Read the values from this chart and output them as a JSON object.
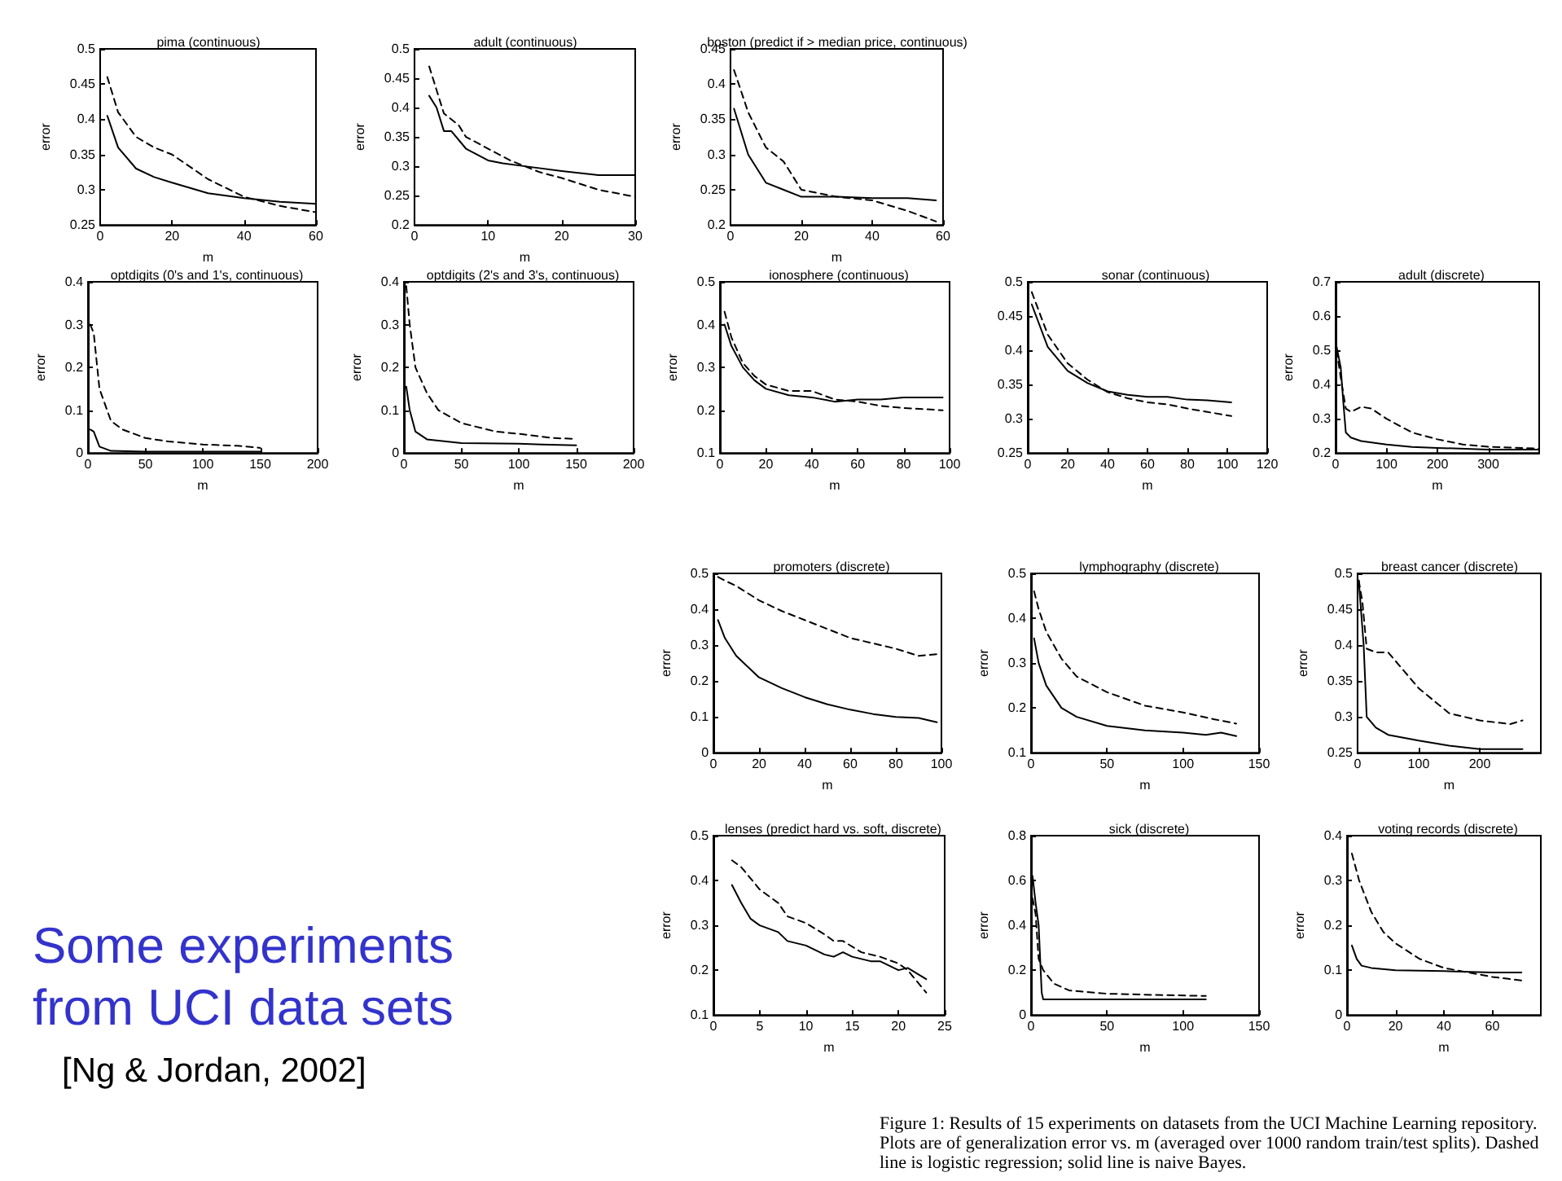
{
  "chart_data": [
    {
      "type": "line",
      "title": "pima (continuous)",
      "xlabel": "m",
      "ylabel": "error",
      "xlim": [
        0,
        60
      ],
      "ylim": [
        0.25,
        0.5
      ],
      "xticks": [
        0,
        20,
        40,
        60
      ],
      "yticks": [
        0.25,
        0.3,
        0.35,
        0.4,
        0.45,
        0.5
      ],
      "series": [
        {
          "color": "#000000",
          "line_style": "solid",
          "x": [
            2,
            5,
            10,
            15,
            20,
            30,
            40,
            50,
            60
          ],
          "values": [
            0.405,
            0.36,
            0.33,
            0.318,
            0.31,
            0.295,
            0.288,
            0.283,
            0.28
          ]
        },
        {
          "color": "#000000",
          "line_style": "dashed",
          "x": [
            2,
            5,
            10,
            15,
            20,
            30,
            40,
            50,
            60
          ],
          "values": [
            0.46,
            0.41,
            0.375,
            0.36,
            0.35,
            0.315,
            0.29,
            0.277,
            0.268
          ]
        }
      ]
    },
    {
      "type": "line",
      "title": "adult (continuous)",
      "xlabel": "m",
      "ylabel": "error",
      "xlim": [
        0,
        30
      ],
      "ylim": [
        0.2,
        0.5
      ],
      "xticks": [
        0,
        10,
        20,
        30
      ],
      "yticks": [
        0.2,
        0.25,
        0.3,
        0.35,
        0.4,
        0.45,
        0.5
      ],
      "series": [
        {
          "color": "#000000",
          "line_style": "solid",
          "x": [
            2,
            3,
            4,
            5,
            7,
            10,
            12,
            15,
            20,
            25,
            30
          ],
          "values": [
            0.42,
            0.4,
            0.36,
            0.36,
            0.33,
            0.31,
            0.305,
            0.3,
            0.292,
            0.285,
            0.285
          ]
        },
        {
          "color": "#000000",
          "line_style": "dashed",
          "x": [
            2,
            3,
            4,
            6,
            7,
            10,
            13,
            17,
            20,
            25,
            30
          ],
          "values": [
            0.47,
            0.43,
            0.39,
            0.37,
            0.35,
            0.33,
            0.31,
            0.29,
            0.28,
            0.26,
            0.248
          ]
        }
      ]
    },
    {
      "type": "line",
      "title": "boston (predict if > median price, continuous)",
      "xlabel": "m",
      "ylabel": "error",
      "xlim": [
        0,
        60
      ],
      "ylim": [
        0.2,
        0.45
      ],
      "xticks": [
        0,
        20,
        40,
        60
      ],
      "yticks": [
        0.2,
        0.25,
        0.3,
        0.35,
        0.4,
        0.45
      ],
      "series": [
        {
          "color": "#000000",
          "line_style": "solid",
          "x": [
            1,
            5,
            10,
            15,
            20,
            30,
            40,
            50,
            58
          ],
          "values": [
            0.365,
            0.3,
            0.26,
            0.25,
            0.24,
            0.24,
            0.238,
            0.238,
            0.235
          ]
        },
        {
          "color": "#000000",
          "line_style": "dashed",
          "x": [
            1,
            5,
            10,
            15,
            20,
            30,
            40,
            50,
            58
          ],
          "values": [
            0.42,
            0.36,
            0.31,
            0.29,
            0.25,
            0.24,
            0.235,
            0.22,
            0.205
          ]
        }
      ]
    },
    {
      "type": "line",
      "title": "optdigits (0's and 1's, continuous)",
      "xlabel": "m",
      "ylabel": "error",
      "xlim": [
        0,
        200
      ],
      "ylim": [
        0,
        0.4
      ],
      "xticks": [
        0,
        50,
        100,
        150,
        200
      ],
      "yticks": [
        0,
        0.1,
        0.2,
        0.3,
        0.4
      ],
      "series": [
        {
          "color": "#000000",
          "line_style": "solid",
          "x": [
            2,
            5,
            10,
            20,
            50,
            100,
            150
          ],
          "values": [
            0.055,
            0.05,
            0.015,
            0.005,
            0.003,
            0.003,
            0.003
          ]
        },
        {
          "color": "#000000",
          "line_style": "dashed",
          "x": [
            2,
            5,
            10,
            20,
            30,
            50,
            70,
            100,
            130,
            150
          ],
          "values": [
            0.3,
            0.28,
            0.15,
            0.075,
            0.055,
            0.035,
            0.027,
            0.02,
            0.017,
            0.012
          ]
        }
      ]
    },
    {
      "type": "line",
      "title": "optdigits (2's and 3's, continuous)",
      "xlabel": "m",
      "ylabel": "error",
      "xlim": [
        0,
        200
      ],
      "ylim": [
        0,
        0.4
      ],
      "xticks": [
        0,
        50,
        100,
        150,
        200
      ],
      "yticks": [
        0,
        0.1,
        0.2,
        0.3,
        0.4
      ],
      "series": [
        {
          "color": "#000000",
          "line_style": "solid",
          "x": [
            2,
            5,
            10,
            20,
            50,
            100,
            120,
            150
          ],
          "values": [
            0.155,
            0.1,
            0.05,
            0.032,
            0.023,
            0.022,
            0.02,
            0.018
          ]
        },
        {
          "color": "#000000",
          "line_style": "dashed",
          "x": [
            2,
            5,
            10,
            20,
            30,
            50,
            80,
            100,
            130,
            150
          ],
          "values": [
            0.39,
            0.3,
            0.2,
            0.14,
            0.1,
            0.07,
            0.05,
            0.045,
            0.035,
            0.033
          ]
        }
      ]
    },
    {
      "type": "line",
      "title": "ionosphere (continuous)",
      "xlabel": "m",
      "ylabel": "error",
      "xlim": [
        0,
        100
      ],
      "ylim": [
        0.1,
        0.5
      ],
      "xticks": [
        0,
        20,
        40,
        60,
        80,
        100
      ],
      "yticks": [
        0.1,
        0.2,
        0.3,
        0.4,
        0.5
      ],
      "series": [
        {
          "color": "#000000",
          "line_style": "solid",
          "x": [
            2,
            5,
            10,
            15,
            20,
            30,
            40,
            50,
            60,
            70,
            80,
            97
          ],
          "values": [
            0.4,
            0.35,
            0.3,
            0.27,
            0.25,
            0.235,
            0.23,
            0.22,
            0.225,
            0.225,
            0.23,
            0.23
          ]
        },
        {
          "color": "#000000",
          "line_style": "dashed",
          "x": [
            2,
            5,
            10,
            15,
            20,
            30,
            40,
            50,
            60,
            70,
            80,
            97
          ],
          "values": [
            0.43,
            0.37,
            0.31,
            0.28,
            0.26,
            0.245,
            0.245,
            0.225,
            0.22,
            0.21,
            0.205,
            0.2
          ]
        }
      ]
    },
    {
      "type": "line",
      "title": "sonar (continuous)",
      "xlabel": "m",
      "xlim": [
        0,
        120
      ],
      "ylim": [
        0.25,
        0.5
      ],
      "xticks": [
        0,
        20,
        40,
        60,
        80,
        100,
        120
      ],
      "yticks": [
        0.25,
        0.3,
        0.35,
        0.4,
        0.45,
        0.5
      ],
      "series": [
        {
          "color": "#000000",
          "line_style": "solid",
          "x": [
            2,
            10,
            20,
            30,
            40,
            50,
            60,
            70,
            80,
            90,
            102
          ],
          "values": [
            0.467,
            0.405,
            0.37,
            0.352,
            0.34,
            0.335,
            0.332,
            0.332,
            0.328,
            0.327,
            0.324
          ]
        },
        {
          "color": "#000000",
          "line_style": "dashed",
          "x": [
            2,
            10,
            20,
            30,
            40,
            50,
            60,
            70,
            80,
            90,
            102
          ],
          "values": [
            0.485,
            0.423,
            0.381,
            0.357,
            0.339,
            0.33,
            0.324,
            0.321,
            0.315,
            0.31,
            0.304
          ]
        }
      ]
    },
    {
      "type": "line",
      "title": "adult (discrete)",
      "xlabel": "m",
      "ylabel": "error",
      "xlim": [
        0,
        400
      ],
      "ylim": [
        0.2,
        0.7
      ],
      "xticks": [
        0,
        100,
        200,
        300
      ],
      "yticks": [
        0.2,
        0.3,
        0.4,
        0.5,
        0.6,
        0.7
      ],
      "series": [
        {
          "color": "#000000",
          "line_style": "solid",
          "x": [
            2,
            10,
            15,
            20,
            30,
            50,
            100,
            150,
            200,
            300,
            400
          ],
          "values": [
            0.51,
            0.45,
            0.35,
            0.26,
            0.245,
            0.235,
            0.225,
            0.218,
            0.215,
            0.21,
            0.21
          ]
        },
        {
          "color": "#000000",
          "line_style": "dashed",
          "x": [
            2,
            10,
            20,
            30,
            50,
            70,
            100,
            150,
            200,
            250,
            300,
            400
          ],
          "values": [
            0.5,
            0.42,
            0.33,
            0.32,
            0.335,
            0.33,
            0.3,
            0.26,
            0.24,
            0.225,
            0.218,
            0.213
          ]
        }
      ]
    },
    {
      "type": "line",
      "title": "promoters (discrete)",
      "xlabel": "m",
      "ylabel": "error",
      "xlim": [
        0,
        100
      ],
      "ylim": [
        0,
        0.5
      ],
      "xticks": [
        0,
        20,
        40,
        60,
        80,
        100
      ],
      "yticks": [
        0,
        0.1,
        0.2,
        0.3,
        0.4,
        0.5
      ],
      "series": [
        {
          "color": "#000000",
          "line_style": "solid",
          "x": [
            2,
            5,
            10,
            20,
            30,
            40,
            50,
            60,
            70,
            80,
            90,
            98
          ],
          "values": [
            0.37,
            0.32,
            0.27,
            0.21,
            0.18,
            0.155,
            0.135,
            0.12,
            0.108,
            0.1,
            0.097,
            0.085
          ]
        },
        {
          "color": "#000000",
          "line_style": "dashed",
          "x": [
            2,
            5,
            10,
            20,
            30,
            40,
            50,
            60,
            70,
            80,
            90,
            98
          ],
          "values": [
            0.49,
            0.48,
            0.465,
            0.425,
            0.395,
            0.37,
            0.345,
            0.32,
            0.305,
            0.29,
            0.27,
            0.275
          ]
        }
      ]
    },
    {
      "type": "line",
      "title": "lymphography (discrete)",
      "xlabel": "m",
      "ylabel": "error",
      "xlim": [
        0,
        150
      ],
      "ylim": [
        0.1,
        0.5
      ],
      "xticks": [
        0,
        50,
        100,
        150
      ],
      "yticks": [
        0.1,
        0.2,
        0.3,
        0.4,
        0.5
      ],
      "series": [
        {
          "color": "#000000",
          "line_style": "solid",
          "x": [
            2,
            5,
            10,
            20,
            30,
            50,
            75,
            100,
            115,
            125,
            135
          ],
          "values": [
            0.355,
            0.3,
            0.25,
            0.2,
            0.18,
            0.16,
            0.15,
            0.145,
            0.14,
            0.145,
            0.137
          ]
        },
        {
          "color": "#000000",
          "line_style": "dashed",
          "x": [
            2,
            5,
            10,
            20,
            30,
            50,
            75,
            100,
            120,
            135
          ],
          "values": [
            0.46,
            0.42,
            0.37,
            0.31,
            0.27,
            0.235,
            0.205,
            0.19,
            0.175,
            0.165
          ]
        }
      ]
    },
    {
      "type": "line",
      "title": "breast cancer (discrete)",
      "xlabel": "m",
      "ylabel": "error",
      "xlim": [
        0,
        300
      ],
      "ylim": [
        0.25,
        0.5
      ],
      "xticks": [
        0,
        100,
        200
      ],
      "yticks": [
        0.25,
        0.3,
        0.35,
        0.4,
        0.45,
        0.5
      ],
      "series": [
        {
          "color": "#000000",
          "line_style": "solid",
          "x": [
            2,
            10,
            15,
            30,
            50,
            100,
            150,
            200,
            270
          ],
          "values": [
            0.49,
            0.4,
            0.3,
            0.285,
            0.275,
            0.267,
            0.26,
            0.255,
            0.255
          ]
        },
        {
          "color": "#000000",
          "line_style": "dashed",
          "x": [
            2,
            8,
            15,
            30,
            50,
            70,
            100,
            150,
            200,
            250,
            270
          ],
          "values": [
            0.49,
            0.46,
            0.395,
            0.39,
            0.39,
            0.37,
            0.34,
            0.305,
            0.295,
            0.29,
            0.295
          ]
        }
      ]
    },
    {
      "type": "line",
      "title": "lenses (predict hard vs. soft, discrete)",
      "xlabel": "m",
      "ylabel": "error",
      "xlim": [
        0,
        25
      ],
      "ylim": [
        0.1,
        0.5
      ],
      "xticks": [
        0,
        5,
        10,
        15,
        20,
        25
      ],
      "yticks": [
        0.1,
        0.2,
        0.3,
        0.4,
        0.5
      ],
      "series": [
        {
          "color": "#000000",
          "line_style": "solid",
          "x": [
            2,
            3,
            4,
            5,
            7,
            8,
            10,
            12,
            13,
            14,
            15,
            17,
            18,
            20,
            21,
            23
          ],
          "values": [
            0.39,
            0.35,
            0.315,
            0.3,
            0.285,
            0.265,
            0.255,
            0.235,
            0.23,
            0.24,
            0.23,
            0.22,
            0.22,
            0.2,
            0.205,
            0.18
          ]
        },
        {
          "color": "#000000",
          "line_style": "dashed",
          "x": [
            2,
            3,
            5,
            7,
            8,
            10,
            12,
            13,
            14,
            16,
            18,
            20,
            21,
            23
          ],
          "values": [
            0.445,
            0.43,
            0.38,
            0.35,
            0.32,
            0.305,
            0.28,
            0.265,
            0.265,
            0.24,
            0.23,
            0.215,
            0.2,
            0.15
          ]
        }
      ]
    },
    {
      "type": "line",
      "title": "sick (discrete)",
      "xlabel": "m",
      "ylabel": "error",
      "xlim": [
        0,
        150
      ],
      "ylim": [
        0,
        0.8
      ],
      "xticks": [
        0,
        50,
        100,
        150
      ],
      "yticks": [
        0,
        0.2,
        0.4,
        0.6,
        0.8
      ],
      "series": [
        {
          "color": "#000000",
          "line_style": "solid",
          "x": [
            1,
            3,
            5,
            7,
            8,
            20,
            50,
            115
          ],
          "values": [
            0.62,
            0.5,
            0.4,
            0.1,
            0.07,
            0.07,
            0.07,
            0.07
          ]
        },
        {
          "color": "#000000",
          "line_style": "dashed",
          "x": [
            1,
            3,
            5,
            8,
            15,
            25,
            50,
            80,
            115
          ],
          "values": [
            0.52,
            0.45,
            0.25,
            0.2,
            0.14,
            0.11,
            0.095,
            0.09,
            0.085
          ]
        }
      ]
    },
    {
      "type": "line",
      "title": "voting records (discrete)",
      "xlabel": "m",
      "ylabel": "error",
      "xlim": [
        0,
        80
      ],
      "ylim": [
        0,
        0.4
      ],
      "xticks": [
        0,
        20,
        40,
        60
      ],
      "yticks": [
        0,
        0.1,
        0.2,
        0.3,
        0.4
      ],
      "series": [
        {
          "color": "#000000",
          "line_style": "solid",
          "x": [
            2,
            4,
            6,
            10,
            20,
            40,
            60,
            72
          ],
          "values": [
            0.155,
            0.125,
            0.11,
            0.105,
            0.1,
            0.098,
            0.095,
            0.095
          ]
        },
        {
          "color": "#000000",
          "line_style": "dashed",
          "x": [
            2,
            5,
            10,
            15,
            20,
            30,
            40,
            50,
            60,
            72
          ],
          "values": [
            0.36,
            0.3,
            0.23,
            0.185,
            0.16,
            0.125,
            0.105,
            0.095,
            0.085,
            0.077
          ]
        }
      ]
    },
    {
      "type": "other",
      "title": "Some experiments from UCI data sets",
      "annotations": [
        "[Ng & Jordan, 2002]"
      ]
    },
    {
      "type": "other",
      "annotations": [
        "Figure 1: Results of 15 experiments on datasets from the UCI Machine Learning repository. Plots are of generalization error vs. m (averaged over 1000 random train/test splits). Dashed line is logistic regression; solid line is naive Bayes."
      ]
    }
  ]
}
